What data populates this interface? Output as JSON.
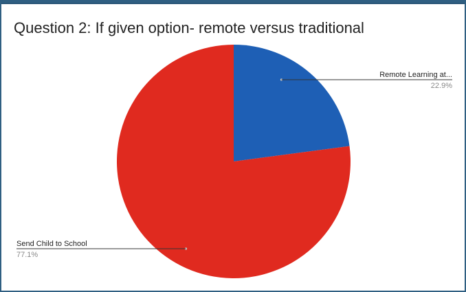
{
  "chart_data": {
    "type": "pie",
    "title": "Question 2: If given option- remote versus traditional",
    "slices": [
      {
        "label": "Remote Learning at...",
        "value": 22.9,
        "value_label": "22.9%",
        "color": "#1e5fb5"
      },
      {
        "label": "Send Child to School",
        "value": 77.1,
        "value_label": "77.1%",
        "color": "#e02a1f"
      }
    ],
    "start_angle_deg": 0,
    "direction": "clockwise",
    "legend": "none"
  }
}
